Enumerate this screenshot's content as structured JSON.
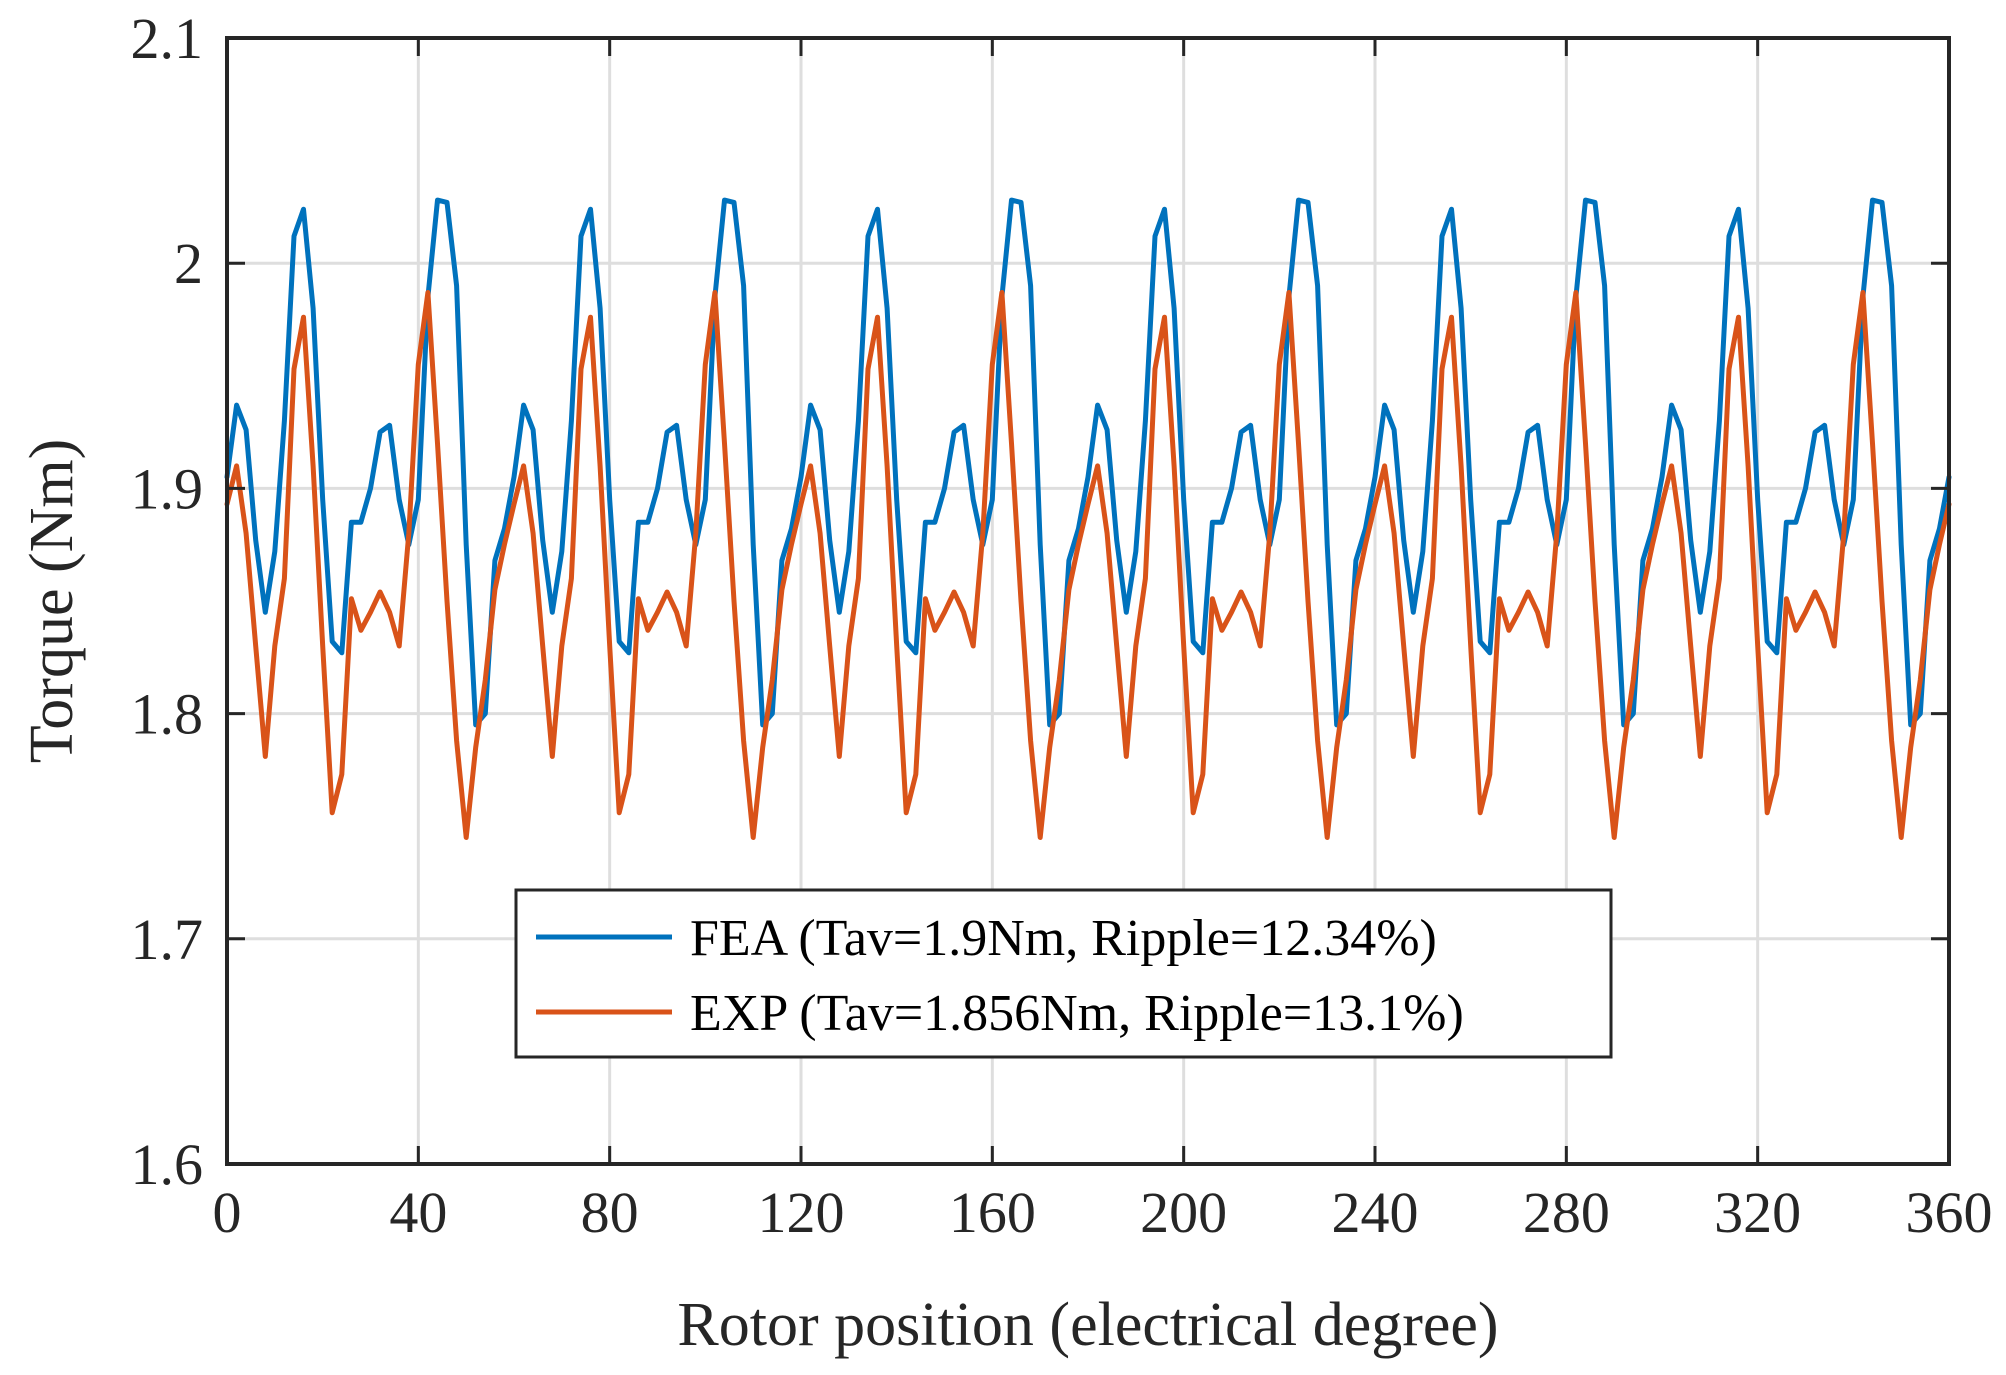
{
  "chart_data": {
    "type": "line",
    "xlabel": "Rotor position (electrical degree)",
    "ylabel": "Torque (Nm)",
    "xlim": [
      0,
      360
    ],
    "ylim": [
      1.6,
      2.1
    ],
    "xticks": [
      0,
      40,
      80,
      120,
      160,
      200,
      240,
      280,
      320,
      360
    ],
    "yticks": [
      1.6,
      1.7,
      1.8,
      1.9,
      2.0,
      2.1
    ],
    "xtick_labels": [
      "0",
      "40",
      "80",
      "120",
      "160",
      "200",
      "240",
      "280",
      "320",
      "360"
    ],
    "ytick_labels": [
      "1.6",
      "1.7",
      "1.8",
      "1.9",
      "2",
      "2.1"
    ],
    "grid": true,
    "legend_position": "bottom-center",
    "period_deg": 60,
    "series": [
      {
        "name": "FEA (Tav=1.9Nm, Ripple=12.34%)",
        "color": "#0072BD",
        "period_x": [
          0,
          2,
          4,
          6,
          8,
          10,
          12,
          14,
          16,
          18,
          20,
          22,
          24,
          26,
          28,
          30,
          32,
          34,
          36,
          38,
          40,
          42,
          44,
          46,
          48,
          50,
          52,
          54,
          56,
          58,
          60
        ],
        "period_y": [
          1.905,
          1.937,
          1.926,
          1.877,
          1.845,
          1.872,
          1.93,
          2.012,
          2.024,
          1.98,
          1.895,
          1.832,
          1.827,
          1.885,
          1.885,
          1.9,
          1.925,
          1.928,
          1.895,
          1.875,
          1.895,
          1.985,
          2.028,
          2.027,
          1.99,
          1.875,
          1.795,
          1.8,
          1.868,
          1.882,
          1.905
        ]
      },
      {
        "name": "EXP (Tav=1.856Nm, Ripple=13.1%)",
        "color": "#D95319",
        "period_x": [
          0,
          2,
          4,
          6,
          8,
          10,
          12,
          14,
          16,
          18,
          20,
          22,
          24,
          26,
          28,
          30,
          32,
          34,
          36,
          38,
          40,
          42,
          44,
          46,
          48,
          50,
          52,
          54,
          56,
          58,
          60
        ],
        "period_y": [
          1.893,
          1.91,
          1.88,
          1.83,
          1.781,
          1.83,
          1.86,
          1.953,
          1.976,
          1.91,
          1.83,
          1.756,
          1.773,
          1.851,
          1.837,
          1.845,
          1.854,
          1.845,
          1.83,
          1.88,
          1.955,
          1.987,
          1.92,
          1.85,
          1.788,
          1.745,
          1.785,
          1.815,
          1.855,
          1.875,
          1.893
        ]
      }
    ]
  }
}
